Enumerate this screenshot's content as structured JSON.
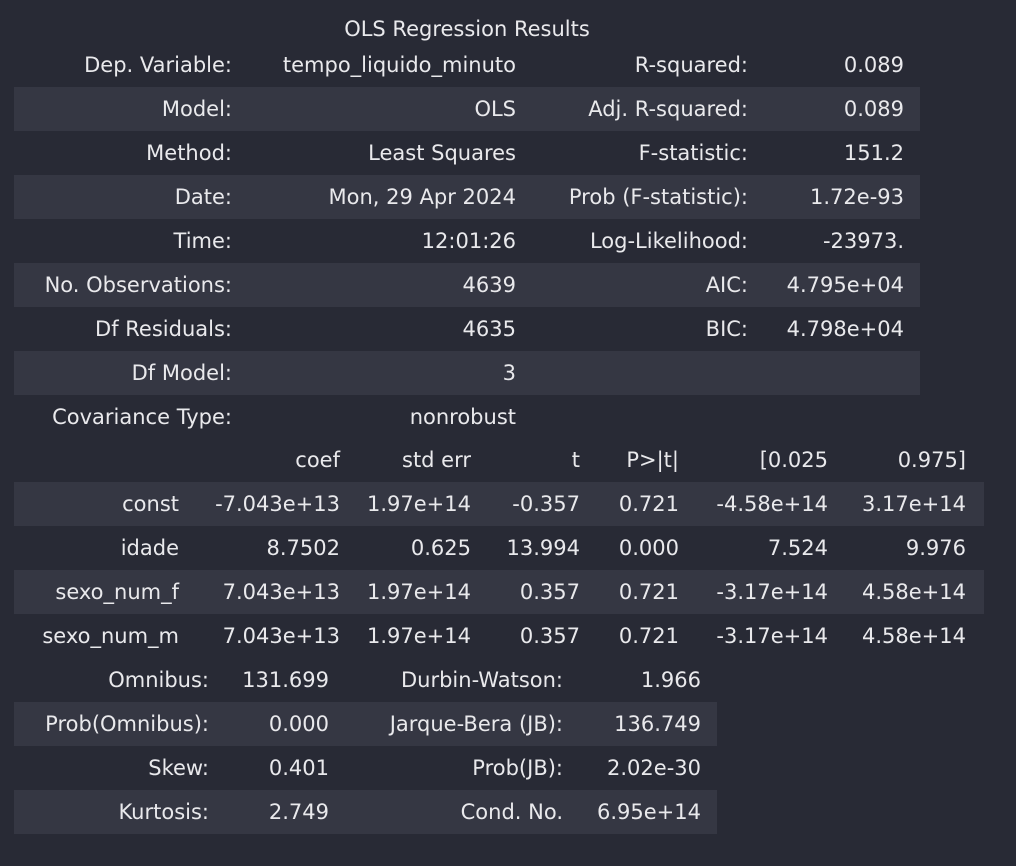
{
  "caption": "OLS Regression Results",
  "summary": {
    "rows": [
      [
        "Dep. Variable:",
        "tempo_liquido_minuto",
        "R-squared:",
        "0.089"
      ],
      [
        "Model:",
        "OLS",
        "Adj. R-squared:",
        "0.089"
      ],
      [
        "Method:",
        "Least Squares",
        "F-statistic:",
        "151.2"
      ],
      [
        "Date:",
        "Mon, 29 Apr 2024",
        "Prob (F-statistic):",
        "1.72e-93"
      ],
      [
        "Time:",
        "12:01:26",
        "Log-Likelihood:",
        "-23973."
      ],
      [
        "No. Observations:",
        "4639",
        "AIC:",
        "4.795e+04"
      ],
      [
        "Df Residuals:",
        "4635",
        "BIC:",
        "4.798e+04"
      ],
      [
        "Df Model:",
        "3",
        "",
        ""
      ],
      [
        "Covariance Type:",
        "nonrobust",
        "",
        ""
      ]
    ]
  },
  "coefficients": {
    "header": [
      "",
      "coef",
      "std err",
      "t",
      "P>|t|",
      "[0.025",
      "0.975]"
    ],
    "rows": [
      [
        "const",
        "-7.043e+13",
        "1.97e+14",
        "-0.357",
        "0.721",
        "-4.58e+14",
        "3.17e+14"
      ],
      [
        "idade",
        "8.7502",
        "0.625",
        "13.994",
        "0.000",
        "7.524",
        "9.976"
      ],
      [
        "sexo_num_f",
        "7.043e+13",
        "1.97e+14",
        "0.357",
        "0.721",
        "-3.17e+14",
        "4.58e+14"
      ],
      [
        "sexo_num_m",
        "7.043e+13",
        "1.97e+14",
        "0.357",
        "0.721",
        "-3.17e+14",
        "4.58e+14"
      ]
    ]
  },
  "diagnostics": {
    "rows": [
      [
        "Omnibus:",
        "131.699",
        "Durbin-Watson:",
        "1.966"
      ],
      [
        "Prob(Omnibus):",
        "0.000",
        "Jarque-Bera (JB):",
        "136.749"
      ],
      [
        "Skew:",
        "0.401",
        "Prob(JB):",
        "2.02e-30"
      ],
      [
        "Kurtosis:",
        "2.749",
        "Cond. No.",
        "6.95e+14"
      ]
    ]
  }
}
